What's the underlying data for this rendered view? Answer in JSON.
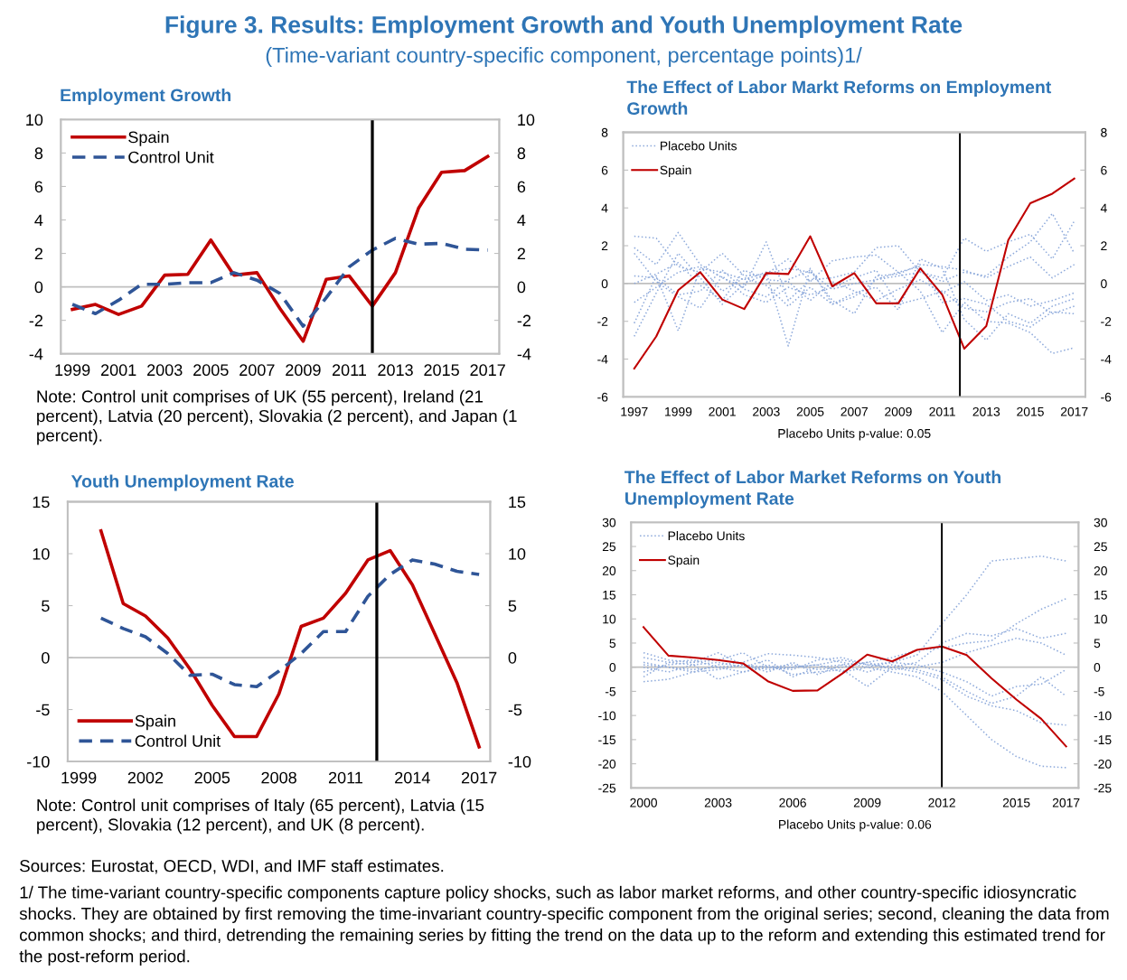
{
  "chart_data": [
    {
      "type": "other",
      "title": "Figure 3. Results: Employment Growth and Youth Unemployment Rate",
      "subtitle": "(Time-variant country-specific component, percentage points)1/",
      "annotations": [
        "Sources: Eurostat, OECD, WDI, and IMF staff estimates.",
        "1/ The time-variant country-specific components capture policy shocks, such as labor market reforms, and other country-specific idiosyncratic shocks. They are obtained by first removing the time-invariant country-specific component from the original series; second, cleaning the data from common shocks; and third, detrending the remaining series by fitting the trend on the data up to the reform and extending this estimated trend for the post-reform period."
      ]
    },
    {
      "type": "line",
      "title": "Employment Growth",
      "x": [
        1999,
        2000,
        2001,
        2002,
        2003,
        2004,
        2005,
        2006,
        2007,
        2008,
        2009,
        2010,
        2011,
        2012,
        2013,
        2014,
        2015,
        2016,
        2017
      ],
      "xlim": [
        1998.5,
        2017.5
      ],
      "xticks": [
        1999,
        2001,
        2003,
        2005,
        2007,
        2009,
        2011,
        2013,
        2015,
        2017
      ],
      "ylim": [
        -4,
        10
      ],
      "yticks": [
        -4,
        -2,
        0,
        2,
        4,
        6,
        8,
        10
      ],
      "y2lim": [
        -4,
        10
      ],
      "y2ticks": [
        -4,
        -2,
        0,
        2,
        4,
        6,
        8,
        10
      ],
      "legend": "top left",
      "series": [
        {
          "name": "Spain",
          "color": "#c00000",
          "line_style": "solid",
          "values": [
            -1.35,
            -1.05,
            -1.65,
            -1.15,
            0.7,
            0.75,
            2.8,
            0.7,
            0.85,
            -1.3,
            -3.25,
            0.45,
            0.65,
            -1.15,
            0.85,
            4.7,
            6.85,
            6.95,
            7.8
          ]
        },
        {
          "name": "Control Unit",
          "color": "#2f5597",
          "line_style": "dashed",
          "values": [
            -1.05,
            -1.6,
            -0.8,
            0.15,
            0.15,
            0.25,
            0.25,
            0.85,
            0.4,
            -0.4,
            -2.35,
            -0.65,
            1.2,
            2.2,
            2.9,
            2.55,
            2.6,
            2.25,
            2.2
          ]
        }
      ],
      "ref_lines": [
        {
          "axis": "y",
          "value": 0,
          "color": "#bfbfbf"
        },
        {
          "axis": "x",
          "value": 2012,
          "color": "#000000"
        }
      ],
      "annotations": [
        "Note: Control unit comprises of UK (55 percent), Ireland (21 percent), Latvia (20 percent), Slovakia (2 percent), and Japan (1 percent)."
      ]
    },
    {
      "type": "line",
      "title": "The Effect of Labor Markt Reforms on Employment Growth",
      "xlabel": "Placebo Units p-value: 0.05",
      "x": [
        1997,
        1998,
        1999,
        2000,
        2001,
        2002,
        2003,
        2004,
        2005,
        2006,
        2007,
        2008,
        2009,
        2010,
        2011,
        2012,
        2013,
        2014,
        2015,
        2016,
        2017
      ],
      "xlim": [
        1996.5,
        2017.5
      ],
      "xticks": [
        1997,
        1999,
        2001,
        2003,
        2005,
        2007,
        2009,
        2011,
        2013,
        2015,
        2017
      ],
      "ylim": [
        -6,
        8
      ],
      "yticks": [
        -6,
        -4,
        -2,
        0,
        2,
        4,
        6,
        8
      ],
      "y2lim": [
        -6,
        8
      ],
      "y2ticks": [
        -6,
        -4,
        -2,
        0,
        2,
        4,
        6,
        8
      ],
      "legend": "top left",
      "series": [
        {
          "name": "Placebo Units",
          "color": "#8eaadb",
          "line_style": "dotted",
          "values": [
            2.5,
            2.4,
            0.9,
            0.6,
            1.6,
            0.4,
            0.5,
            0.8,
            0.6,
            -0.3,
            0.0,
            0.2,
            0.4,
            0.6,
            0.3,
            2.4,
            1.7,
            2.2,
            2.6,
            1.3,
            3.3
          ]
        },
        {
          "color": "#8eaadb",
          "line_style": "dotted",
          "values": [
            1.9,
            1.0,
            2.7,
            1.0,
            0.3,
            -0.2,
            2.2,
            -0.9,
            0.2,
            0.3,
            0.6,
            1.9,
            2.0,
            0.6,
            0.1,
            0.6,
            0.4,
            1.4,
            2.2,
            3.7,
            1.6
          ]
        },
        {
          "color": "#8eaadb",
          "line_style": "dotted",
          "values": [
            -2.1,
            0.4,
            -2.5,
            0.8,
            0.6,
            0.2,
            0.6,
            -3.3,
            0.8,
            -1.1,
            -0.5,
            -0.2,
            -1.4,
            1.3,
            0.8,
            -1.9,
            -3.0,
            -1.6,
            -2.1,
            -1.2,
            -0.8
          ]
        },
        {
          "color": "#8eaadb",
          "line_style": "dotted",
          "values": [
            -2.8,
            -0.5,
            1.6,
            0.3,
            -1.1,
            0.0,
            0.5,
            1.3,
            0.1,
            1.2,
            1.4,
            1.5,
            0.6,
            -0.4,
            -2.6,
            -1.0,
            -2.0,
            -2.1,
            -2.6,
            -3.7,
            -3.4
          ]
        },
        {
          "color": "#8eaadb",
          "line_style": "dotted",
          "values": [
            0.4,
            0.3,
            -0.6,
            -0.4,
            0.7,
            -0.3,
            -0.7,
            0.2,
            0.7,
            -0.9,
            -1.6,
            0.4,
            0.5,
            1.0,
            0.9,
            0.7,
            0.3,
            0.9,
            1.4,
            0.3,
            1.0
          ]
        },
        {
          "color": "#8eaadb",
          "line_style": "dotted",
          "values": [
            1.6,
            0.1,
            -0.7,
            -1.3,
            0.4,
            -0.6,
            -1.0,
            -0.2,
            -0.6,
            -0.2,
            0.3,
            0.7,
            -1.1,
            -0.8,
            -0.4,
            -1.3,
            -1.5,
            -1.0,
            -0.8,
            -1.6,
            -1.2
          ]
        },
        {
          "color": "#8eaadb",
          "line_style": "dotted",
          "values": [
            -1.0,
            -0.2,
            0.6,
            0.9,
            -0.4,
            0.3,
            -0.1,
            -1.2,
            -0.2,
            -1.1,
            -0.7,
            0.2,
            0.6,
            0.9,
            -1.0,
            -0.8,
            -1.1,
            -2.0,
            -2.3,
            -1.5,
            -1.6
          ]
        },
        {
          "color": "#8eaadb",
          "line_style": "dotted",
          "values": [
            0.0,
            0.5,
            1.1,
            -0.1,
            -0.9,
            0.7,
            0.2,
            0.1,
            -0.9,
            0.1,
            -0.4,
            -0.9,
            -0.3,
            0.2,
            -0.5,
            0.1,
            -0.9,
            -0.6,
            -1.2,
            -0.9,
            -0.5
          ]
        },
        {
          "name": "Spain",
          "color": "#c00000",
          "line_style": "solid",
          "values": [
            -4.5,
            -2.8,
            -0.35,
            0.6,
            -0.85,
            -1.35,
            0.55,
            0.5,
            2.5,
            -0.15,
            0.55,
            -1.05,
            -1.05,
            0.8,
            -0.6,
            -3.45,
            -2.25,
            2.3,
            4.25,
            4.75,
            5.55
          ]
        }
      ],
      "ref_lines": [
        {
          "axis": "y",
          "value": 0,
          "color": "#bfbfbf"
        },
        {
          "axis": "x",
          "value": 2011.8,
          "color": "#000000"
        }
      ]
    },
    {
      "type": "line",
      "title": "Youth Unemployment Rate",
      "x": [
        2000,
        2001,
        2002,
        2003,
        2004,
        2005,
        2006,
        2007,
        2008,
        2009,
        2010,
        2011,
        2012,
        2013,
        2014,
        2015,
        2016,
        2017
      ],
      "xlim": [
        1998.5,
        2017.5
      ],
      "xticks": [
        1999,
        2002,
        2005,
        2008,
        2011,
        2014,
        2017
      ],
      "ylim": [
        -10,
        15
      ],
      "yticks": [
        -10,
        -5,
        0,
        5,
        10,
        15
      ],
      "y2lim": [
        -10,
        15
      ],
      "y2ticks": [
        -10,
        -5,
        0,
        5,
        10,
        15
      ],
      "legend": "bottom left",
      "series": [
        {
          "name": "Spain",
          "color": "#c00000",
          "line_style": "solid",
          "values": [
            12.2,
            5.2,
            4.0,
            1.9,
            -1.1,
            -4.6,
            -7.6,
            -7.6,
            -3.5,
            3.0,
            3.8,
            6.2,
            9.4,
            10.3,
            7.0,
            2.3,
            -2.4,
            -8.6
          ]
        },
        {
          "name": "Control Unit",
          "color": "#2f5597",
          "line_style": "dashed",
          "values": [
            3.8,
            2.8,
            2.0,
            0.4,
            -1.7,
            -1.6,
            -2.6,
            -2.8,
            -1.3,
            0.4,
            2.5,
            2.5,
            5.9,
            8.0,
            9.4,
            9.0,
            8.3,
            8.0
          ]
        }
      ],
      "ref_lines": [
        {
          "axis": "y",
          "value": 0,
          "color": "#bfbfbf"
        },
        {
          "axis": "x",
          "value": 2012.4,
          "color": "#000000"
        }
      ],
      "annotations": [
        "Note: Control unit comprises of Italy (65 percent), Latvia (15 percent), Slovakia (12 percent), and UK (8 percent)."
      ]
    },
    {
      "type": "line",
      "title": "The Effect of Labor Market Reforms on Youth Unemployment Rate",
      "xlabel": "Placebo Units p-value: 0.06",
      "x": [
        2000,
        2001,
        2002,
        2003,
        2004,
        2005,
        2006,
        2007,
        2008,
        2009,
        2010,
        2011,
        2012,
        2013,
        2014,
        2015,
        2016,
        2017
      ],
      "xlim": [
        1999.5,
        2017.5
      ],
      "xticks": [
        2000,
        2003,
        2006,
        2009,
        2012,
        2015,
        2017
      ],
      "ylim": [
        -25,
        30
      ],
      "yticks": [
        -25,
        -20,
        -15,
        -10,
        -5,
        0,
        5,
        10,
        15,
        20,
        25,
        30
      ],
      "y2lim": [
        -25,
        30
      ],
      "y2ticks": [
        -25,
        -20,
        -15,
        -10,
        -5,
        0,
        5,
        10,
        15,
        20,
        25,
        30
      ],
      "legend": "top left",
      "series": [
        {
          "name": "Placebo Units",
          "color": "#8eaadb",
          "line_style": "dotted",
          "values": [
            3.0,
            1.5,
            1.0,
            3.0,
            0.5,
            -0.5,
            0.0,
            0.5,
            1.5,
            0.5,
            1.0,
            2.5,
            9.0,
            15.0,
            22.0,
            22.5,
            23.0,
            22.0
          ]
        },
        {
          "color": "#8eaadb",
          "line_style": "dotted",
          "values": [
            -3.0,
            -2.5,
            -1.0,
            0.5,
            1.0,
            2.8,
            2.5,
            2.0,
            1.0,
            0.0,
            -1.0,
            -2.0,
            -5.0,
            -10.0,
            -15.0,
            -18.5,
            -20.5,
            -20.8
          ]
        },
        {
          "color": "#8eaadb",
          "line_style": "dotted",
          "values": [
            2.0,
            1.0,
            0.5,
            -2.5,
            -1.0,
            0.5,
            -1.5,
            -1.0,
            -0.5,
            -4.0,
            0.0,
            1.0,
            5.0,
            7.0,
            6.5,
            8.0,
            6.0,
            7.0
          ]
        },
        {
          "color": "#8eaadb",
          "line_style": "dotted",
          "values": [
            -1.0,
            0.5,
            1.0,
            1.5,
            3.0,
            0.0,
            -0.5,
            1.5,
            2.0,
            0.5,
            0.0,
            -1.0,
            -2.5,
            -6.0,
            -8.0,
            -9.0,
            -11.5,
            -12.0
          ]
        },
        {
          "color": "#8eaadb",
          "line_style": "dotted",
          "values": [
            1.0,
            0.0,
            -0.5,
            0.0,
            0.5,
            -1.0,
            1.0,
            -1.5,
            0.5,
            1.0,
            2.0,
            3.5,
            4.0,
            5.0,
            5.5,
            9.0,
            12.0,
            14.2
          ]
        },
        {
          "color": "#8eaadb",
          "line_style": "dotted",
          "values": [
            0.0,
            -1.0,
            0.5,
            1.0,
            0.0,
            1.5,
            -2.0,
            0.0,
            0.5,
            -1.0,
            0.5,
            -0.5,
            -2.0,
            -5.0,
            -7.5,
            -6.0,
            -2.0,
            -6.0
          ]
        },
        {
          "color": "#8eaadb",
          "line_style": "dotted",
          "values": [
            -2.0,
            1.0,
            1.5,
            0.0,
            -1.0,
            0.0,
            0.5,
            -0.5,
            0.0,
            1.0,
            -0.5,
            0.0,
            1.0,
            3.0,
            4.5,
            6.0,
            5.0,
            2.5
          ]
        },
        {
          "color": "#8eaadb",
          "line_style": "dotted",
          "values": [
            0.5,
            0.0,
            -1.0,
            -0.5,
            0.5,
            0.0,
            0.0,
            0.5,
            -1.0,
            0.0,
            1.0,
            0.5,
            -1.0,
            -3.0,
            -6.0,
            -4.0,
            -3.5,
            -0.5
          ]
        },
        {
          "name": "Spain",
          "color": "#c00000",
          "line_style": "solid",
          "values": [
            8.3,
            2.4,
            2.0,
            1.5,
            0.8,
            -2.9,
            -4.9,
            -4.8,
            -1.3,
            2.6,
            1.2,
            3.6,
            4.3,
            2.5,
            -2.3,
            -6.7,
            -10.7,
            -16.4
          ]
        }
      ],
      "ref_lines": [
        {
          "axis": "y",
          "value": 0,
          "color": "#bfbfbf"
        },
        {
          "axis": "x",
          "value": 2012,
          "color": "#000000"
        }
      ]
    }
  ]
}
